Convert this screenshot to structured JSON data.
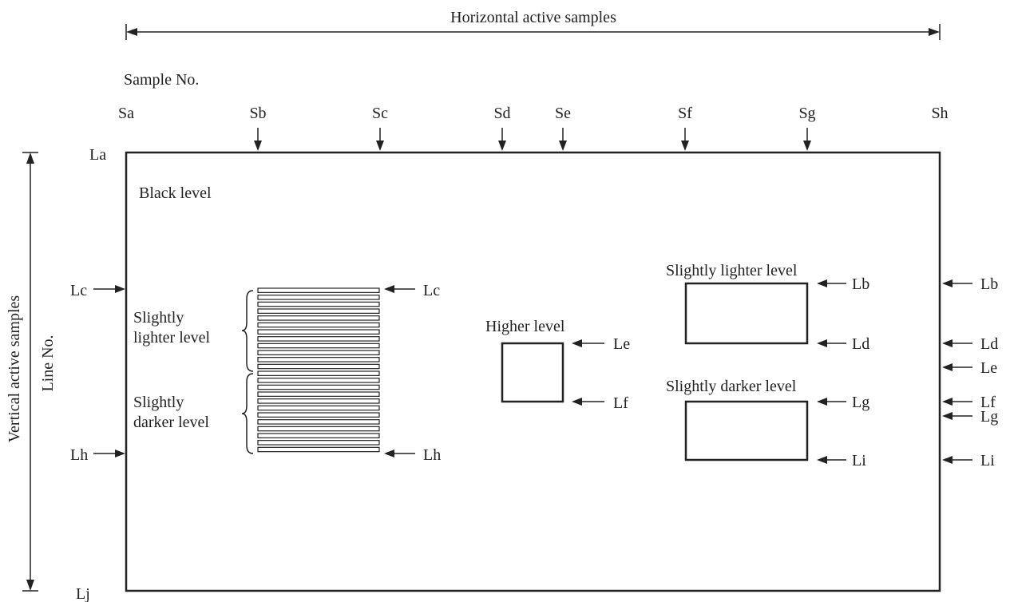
{
  "header": {
    "horizontal_label": "Horizontal active samples",
    "sample_no_label": "Sample No."
  },
  "sides": {
    "vertical_label": "Vertical active samples",
    "line_no_label": "Line No."
  },
  "samples": [
    "Sa",
    "Sb",
    "Sc",
    "Sd",
    "Se",
    "Sf",
    "Sg",
    "Sh"
  ],
  "lines": {
    "la": "La",
    "lb": "Lb",
    "lc": "Lc",
    "ld": "Ld",
    "le": "Le",
    "lf": "Lf",
    "lg": "Lg",
    "lh": "Lh",
    "li": "Li",
    "lj": "Lj"
  },
  "regions": {
    "black_level": "Black level",
    "grating_lighter_1": "Slightly",
    "grating_lighter_2": "lighter level",
    "grating_darker_1": "Slightly",
    "grating_darker_2": "darker level",
    "higher_level": "Higher level",
    "lighter_box": "Slightly lighter level",
    "darker_box": "Slightly darker level"
  },
  "grating": {
    "bar_count": 24
  },
  "colors": {
    "ink": "#222222",
    "background": "#ffffff"
  }
}
